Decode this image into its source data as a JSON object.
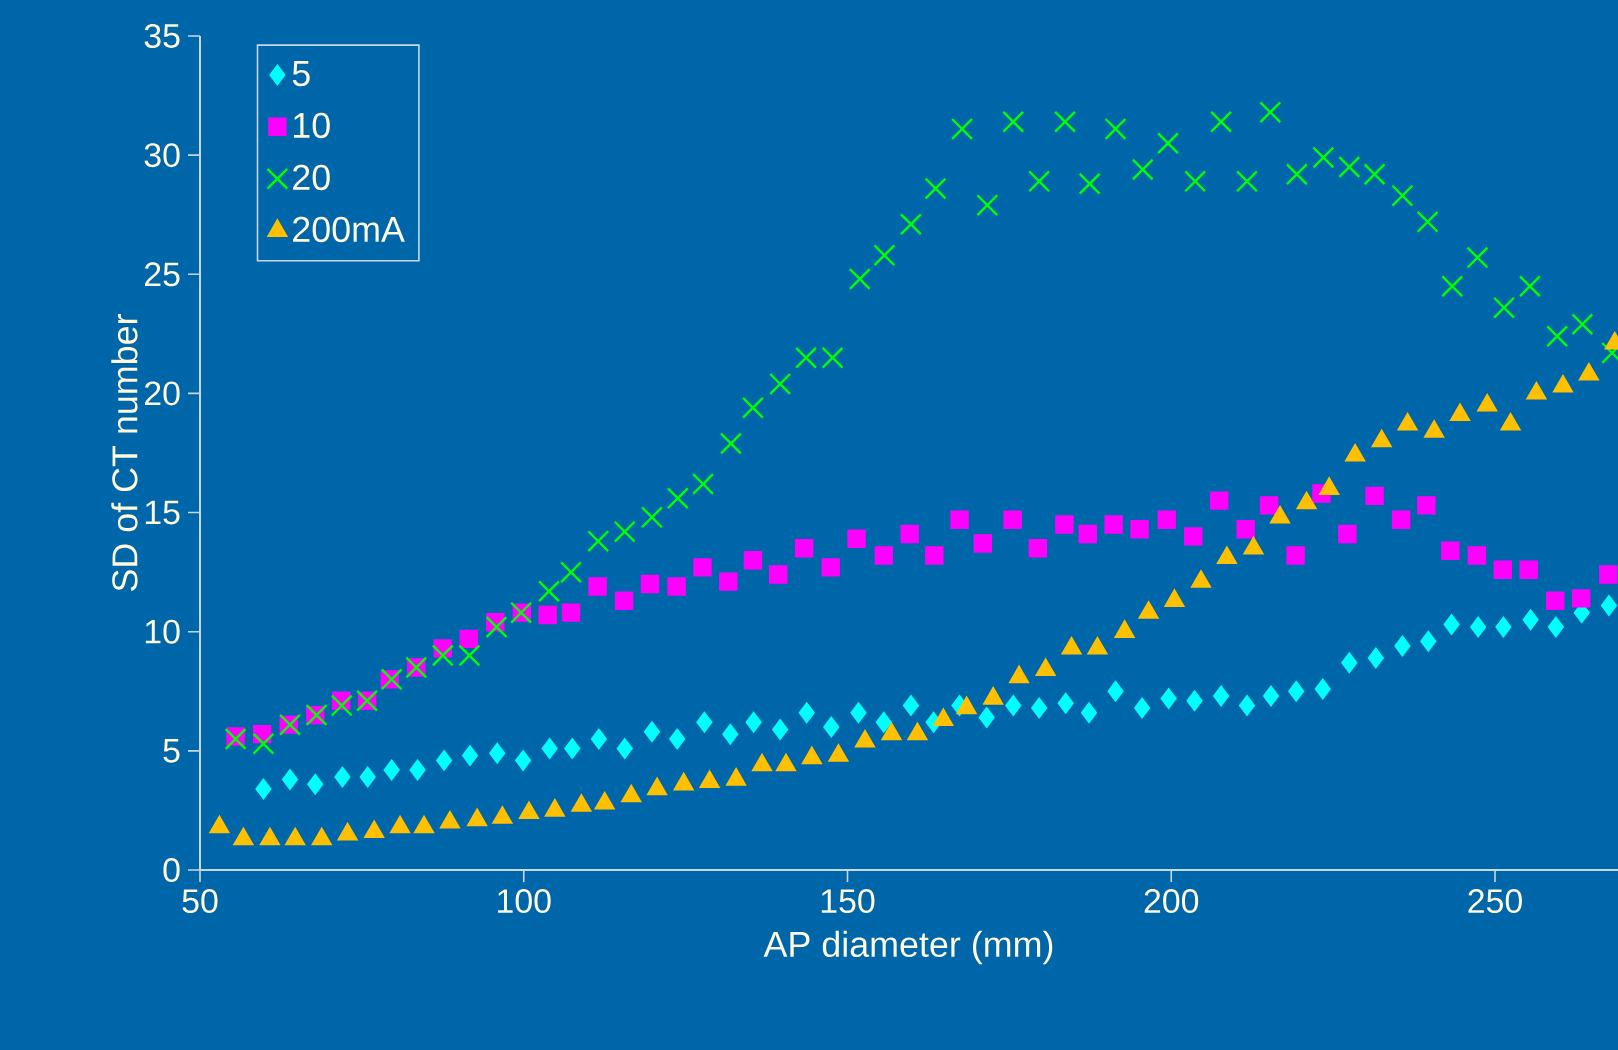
{
  "chart_data": {
    "type": "scatter",
    "xlabel": "AP diameter (mm)",
    "ylabel": "SD of CT number",
    "xlim": [
      50,
      269
    ],
    "ylim": [
      0,
      35
    ],
    "xticks": [
      50,
      100,
      150,
      200,
      250
    ],
    "yticks": [
      0,
      5,
      10,
      15,
      20,
      25,
      30,
      35
    ],
    "legend": "top left",
    "series": [
      {
        "name": "5",
        "color": "#00ffff",
        "marker": "diamond",
        "x": [
          59.8,
          63.9,
          67.8,
          72,
          75.9,
          79.6,
          83.6,
          87.7,
          91.7,
          95.9,
          99.9,
          104,
          107.5,
          111.6,
          115.6,
          119.8,
          123.7,
          127.9,
          131.9,
          135.5,
          139.6,
          143.7,
          147.5,
          151.7,
          155.6,
          159.8,
          163.3,
          167.3,
          171.5,
          175.6,
          179.6,
          183.7,
          187.3,
          191.4,
          195.5,
          199.6,
          203.6,
          207.7,
          211.7,
          215.4,
          219.3,
          223.4,
          227.5,
          231.6,
          235.7,
          239.7,
          243.3,
          247.4,
          251.3,
          255.5,
          259.4,
          263.4,
          267.6
        ],
        "values": [
          3.4,
          3.8,
          3.6,
          3.9,
          3.9,
          4.2,
          4.2,
          4.6,
          4.8,
          4.9,
          4.6,
          5.1,
          5.1,
          5.5,
          5.1,
          5.8,
          5.5,
          6.2,
          5.7,
          6.2,
          5.9,
          6.6,
          6.0,
          6.6,
          6.2,
          6.9,
          6.2,
          6.9,
          6.4,
          6.9,
          6.8,
          7.0,
          6.6,
          7.5,
          6.8,
          7.2,
          7.1,
          7.3,
          6.9,
          7.3,
          7.5,
          7.6,
          8.7,
          8.9,
          9.4,
          9.6,
          10.3,
          10.2,
          10.2,
          10.5,
          10.2,
          10.8,
          11.1
        ]
      },
      {
        "name": "10",
        "color": "#ff00ff",
        "marker": "square",
        "x": [
          55.5,
          59.6,
          63.7,
          67.8,
          71.8,
          75.8,
          79.3,
          83.4,
          87.5,
          91.5,
          95.6,
          99.7,
          103.7,
          107.3,
          111.4,
          115.5,
          119.5,
          123.6,
          127.6,
          131.6,
          135.4,
          139.3,
          143.3,
          147.4,
          151.4,
          155.6,
          159.6,
          163.4,
          167.3,
          170.9,
          175.5,
          179.4,
          183.5,
          187.1,
          191.1,
          195.1,
          199.3,
          203.4,
          207.4,
          211.5,
          215.1,
          219.2,
          223.2,
          227.2,
          231.4,
          235.5,
          239.4,
          243.1,
          247.2,
          251.2,
          255.2,
          259.3,
          263.3,
          267.5
        ],
        "values": [
          5.6,
          5.7,
          6.1,
          6.5,
          7.1,
          7.1,
          8.0,
          8.5,
          9.3,
          9.7,
          10.4,
          10.8,
          10.7,
          10.8,
          11.9,
          11.3,
          12.0,
          11.9,
          12.7,
          12.1,
          13.0,
          12.4,
          13.5,
          12.7,
          13.9,
          13.2,
          14.1,
          13.2,
          14.7,
          13.7,
          14.7,
          13.5,
          14.5,
          14.1,
          14.5,
          14.3,
          14.7,
          14.0,
          15.5,
          14.3,
          15.3,
          13.2,
          15.8,
          14.1,
          15.7,
          14.7,
          15.3,
          13.4,
          13.2,
          12.6,
          12.6,
          11.3,
          11.4,
          12.4
        ]
      },
      {
        "name": "20",
        "color": "#00ff00",
        "marker": "cross",
        "x": [
          55.5,
          59.8,
          63.9,
          68,
          71.9,
          75.8,
          79.6,
          83.4,
          87.5,
          91.6,
          95.8,
          99.6,
          103.9,
          107.3,
          111.5,
          115.6,
          119.8,
          123.8,
          127.7,
          132,
          135.4,
          139.6,
          143.6,
          147.7,
          151.9,
          155.7,
          159.8,
          163.6,
          167.7,
          171.6,
          175.6,
          179.6,
          183.6,
          187.4,
          191.4,
          195.6,
          199.5,
          203.7,
          207.7,
          211.7,
          215.3,
          219.4,
          223.5,
          227.5,
          231.4,
          235.7,
          239.6,
          243.4,
          247.3,
          251.4,
          255.4,
          259.6,
          263.5,
          268.1
        ],
        "values": [
          5.5,
          5.3,
          6.1,
          6.5,
          6.9,
          7.1,
          8.0,
          8.5,
          9.0,
          9.0,
          10.2,
          10.8,
          11.7,
          12.5,
          13.8,
          14.2,
          14.8,
          15.6,
          16.2,
          17.9,
          19.4,
          20.4,
          21.5,
          21.5,
          24.8,
          25.8,
          27.1,
          28.6,
          31.1,
          27.9,
          31.4,
          28.9,
          31.4,
          28.8,
          31.1,
          29.4,
          30.5,
          28.9,
          31.4,
          28.9,
          31.8,
          29.2,
          29.9,
          29.5,
          29.2,
          28.3,
          27.2,
          24.5,
          25.7,
          23.6,
          24.5,
          22.4,
          22.9,
          21.7
        ]
      },
      {
        "name": "200mA",
        "color": "#ffc000",
        "marker": "triangle",
        "x": [
          53,
          56.7,
          60.8,
          64.7,
          68.8,
          72.8,
          76.9,
          80.9,
          84.6,
          88.6,
          92.8,
          96.7,
          100.8,
          104.8,
          108.9,
          112.5,
          116.6,
          120.6,
          124.7,
          128.7,
          132.8,
          136.8,
          140.5,
          144.5,
          148.6,
          152.7,
          156.8,
          160.8,
          164.8,
          168.4,
          172.5,
          176.5,
          180.6,
          184.6,
          188.6,
          192.8,
          196.5,
          200.5,
          204.6,
          208.6,
          212.7,
          216.8,
          220.9,
          224.4,
          228.4,
          232.5,
          236.5,
          240.6,
          244.6,
          248.8,
          252.4,
          256.4,
          260.5,
          264.5,
          268.5
        ],
        "values": [
          1.8,
          1.3,
          1.3,
          1.3,
          1.3,
          1.5,
          1.6,
          1.8,
          1.8,
          2.0,
          2.1,
          2.2,
          2.4,
          2.5,
          2.7,
          2.8,
          3.1,
          3.4,
          3.6,
          3.7,
          3.8,
          4.4,
          4.4,
          4.7,
          4.8,
          5.4,
          5.7,
          5.7,
          6.3,
          6.8,
          7.2,
          8.1,
          8.4,
          9.3,
          9.3,
          10.0,
          10.8,
          11.3,
          12.1,
          13.1,
          13.5,
          14.8,
          15.4,
          16.0,
          17.4,
          18.0,
          18.7,
          18.4,
          19.1,
          19.5,
          18.7,
          20.0,
          20.3,
          20.8,
          22.1
        ]
      }
    ]
  }
}
